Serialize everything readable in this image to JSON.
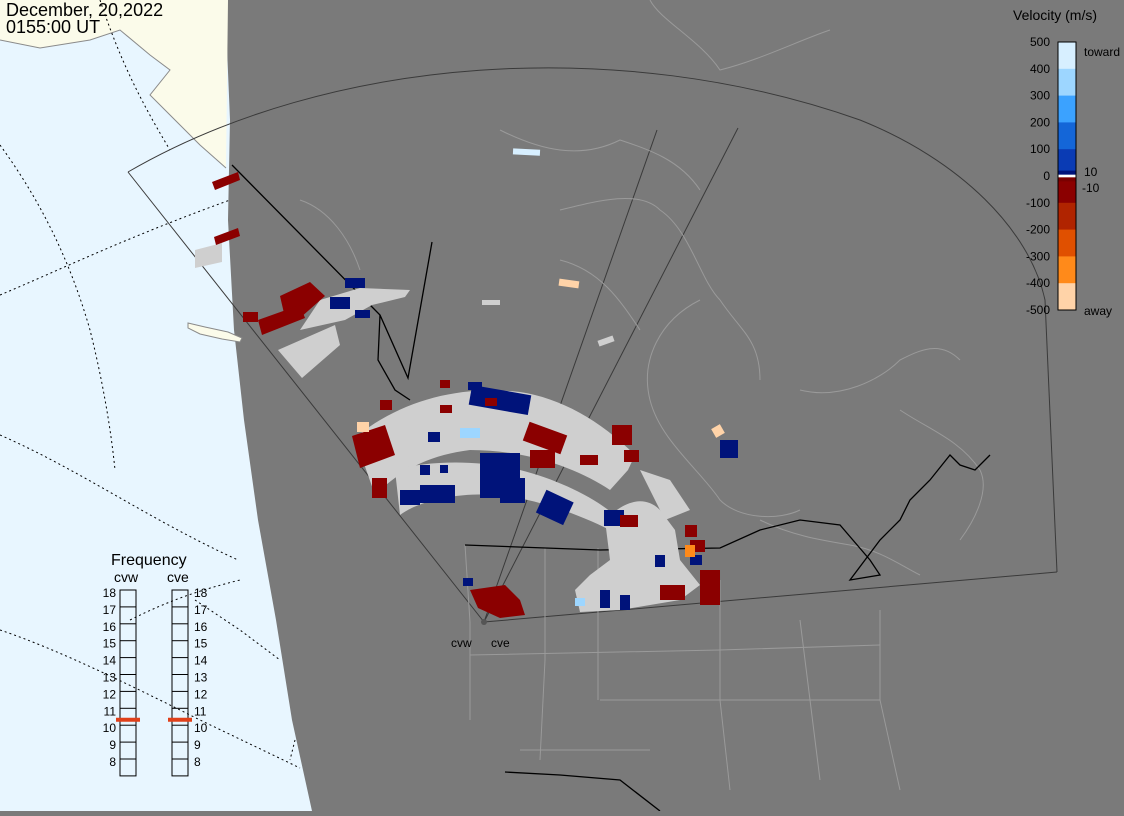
{
  "map": {
    "date": "December, 20,2022",
    "time": "0155:00 UT"
  },
  "radars": {
    "west": "cvw",
    "east": "cve"
  },
  "legend": {
    "title": "Velocity (m/s)",
    "toward": "toward",
    "away": "away",
    "ticks": [
      "500",
      "400",
      "300",
      "200",
      "100",
      "0",
      "-100",
      "-200",
      "-300",
      "-400",
      "-500"
    ],
    "small_pos": "10",
    "small_neg": "-10",
    "colors": {
      "toward_500": "#d7efff",
      "toward_400": "#9dd6ff",
      "toward_300": "#3ba2ff",
      "toward_200": "#1466d8",
      "toward_100": "#0a3bb4",
      "toward_10": "#00137a",
      "away_10": "#7a0000",
      "away_100": "#8b0000",
      "away_200": "#b02400",
      "away_300": "#e05000",
      "away_400": "#ff8a1a",
      "away_500": "#ffd3a8"
    }
  },
  "frequency": {
    "title": "Frequency",
    "left_label": "cvw",
    "right_label": "cve",
    "scale": [
      "18",
      "17",
      "16",
      "15",
      "14",
      "13",
      "12",
      "11",
      "10",
      "9",
      "8"
    ],
    "cvw_value": 10.5,
    "cve_value": 10.5,
    "marker_color": "#e0401a"
  },
  "colors": {
    "ocean": "#e8f6ff",
    "land_outside": "#fbfbea",
    "map_bg": "#7a7a7a",
    "coast": "#9a9a9a",
    "border": "#000000",
    "ground_scatter": "#cfcfcf"
  }
}
